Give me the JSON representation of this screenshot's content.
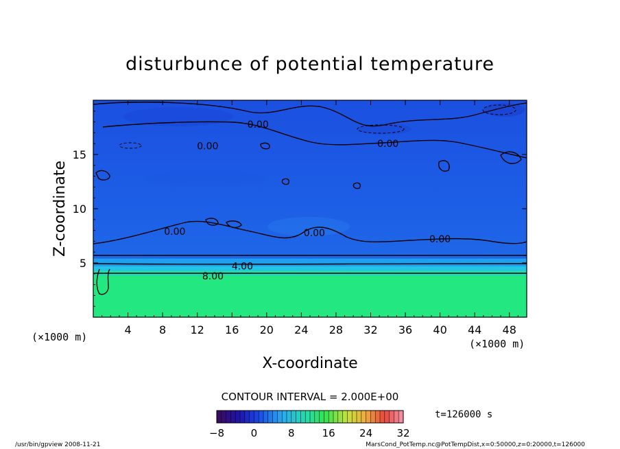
{
  "chart_data": {
    "type": "heatmap",
    "title": "disturbunce of potential temperature",
    "xlabel": "X-coordinate",
    "ylabel": "Z-coordinate",
    "x_units": "(×1000 m)",
    "y_units": "(×1000 m)",
    "xlim": [
      0,
      50
    ],
    "ylim": [
      0,
      20
    ],
    "x_ticks": [
      4,
      8,
      12,
      16,
      20,
      24,
      28,
      32,
      36,
      40,
      44,
      48
    ],
    "y_ticks": [
      5,
      10,
      15
    ],
    "grid": false,
    "contour_interval_label": "CONTOUR INTERVAL = 2.000E+00",
    "time_label": "t=126000 s",
    "colorbar": {
      "min": -8,
      "max": 32,
      "ticks": [
        -8,
        0,
        8,
        16,
        24,
        32
      ],
      "colormap": "rainbow"
    },
    "contour_labels": [
      {
        "text": "0.00",
        "x": 19.0,
        "z": 17.8
      },
      {
        "text": "0.00",
        "x": 13.2,
        "z": 15.8
      },
      {
        "text": "0.00",
        "x": 34.0,
        "z": 16.0
      },
      {
        "text": "0.00",
        "x": 9.4,
        "z": 7.9
      },
      {
        "text": "0.00",
        "x": 25.5,
        "z": 7.8
      },
      {
        "text": "0.00",
        "x": 40.0,
        "z": 7.2
      },
      {
        "text": "4.00",
        "x": 17.2,
        "z": 4.7
      },
      {
        "text": "8.00",
        "x": 13.8,
        "z": 3.8
      }
    ],
    "regions": [
      {
        "z_from": 0,
        "z_to": 3.8,
        "value": 10,
        "color": "#23e882"
      },
      {
        "z_from": 3.8,
        "z_to": 4.3,
        "value": 6,
        "color": "#22dcb0"
      },
      {
        "z_from": 4.3,
        "z_to": 4.7,
        "value": 4,
        "color": "#24c4e6"
      },
      {
        "z_from": 4.7,
        "z_to": 5.4,
        "value": 2,
        "color": "#1ea0ee"
      },
      {
        "z_from": 5.4,
        "z_to": 20,
        "value": 0,
        "color": "#1f63e6"
      }
    ]
  },
  "footer": {
    "left": "/usr/bin/gpview   2008-11-21",
    "right": "MarsCond_PotTemp.nc@PotTempDist,x=0:50000,z=0:20000,t=126000"
  }
}
